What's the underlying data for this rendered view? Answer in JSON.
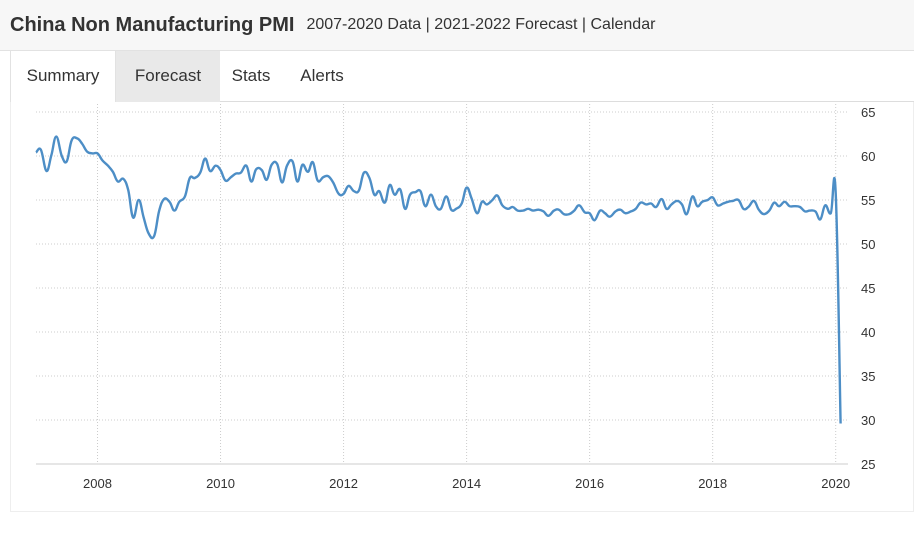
{
  "header": {
    "title": "China Non Manufacturing PMI",
    "subtitle": "2007-2020 Data | 2021-2022 Forecast | Calendar"
  },
  "tabs": [
    {
      "label": "Summary"
    },
    {
      "label": "Forecast"
    },
    {
      "label": "Stats"
    },
    {
      "label": "Alerts"
    }
  ],
  "colors": {
    "line": "#4d8ec6",
    "grid": "#cccccc",
    "active_tab": "#e9e9e9"
  },
  "chart_data": {
    "type": "line",
    "title": "",
    "xlabel": "",
    "ylabel": "",
    "xlim": [
      2007.0,
      2020.2
    ],
    "ylim": [
      25,
      65
    ],
    "x_ticks": [
      2008,
      2010,
      2012,
      2014,
      2016,
      2018,
      2020
    ],
    "y_ticks": [
      25,
      30,
      35,
      40,
      45,
      50,
      55,
      60,
      65
    ],
    "grid": true,
    "y_axis_position": "right",
    "series": [
      {
        "values": [
          [
            2007.0,
            60.4
          ],
          [
            2007.08,
            60.7
          ],
          [
            2007.17,
            58.3
          ],
          [
            2007.25,
            60.1
          ],
          [
            2007.33,
            62.2
          ],
          [
            2007.42,
            60.0
          ],
          [
            2007.5,
            59.4
          ],
          [
            2007.58,
            61.8
          ],
          [
            2007.67,
            62.0
          ],
          [
            2007.75,
            61.4
          ],
          [
            2007.83,
            60.5
          ],
          [
            2007.92,
            60.3
          ],
          [
            2008.0,
            60.3
          ],
          [
            2008.08,
            59.5
          ],
          [
            2008.17,
            58.9
          ],
          [
            2008.25,
            58.2
          ],
          [
            2008.33,
            57.1
          ],
          [
            2008.42,
            57.4
          ],
          [
            2008.5,
            56.1
          ],
          [
            2008.58,
            53.0
          ],
          [
            2008.67,
            55.0
          ],
          [
            2008.75,
            53.0
          ],
          [
            2008.83,
            51.2
          ],
          [
            2008.92,
            50.9
          ],
          [
            2009.0,
            53.7
          ],
          [
            2009.08,
            55.1
          ],
          [
            2009.17,
            54.8
          ],
          [
            2009.25,
            53.8
          ],
          [
            2009.33,
            54.8
          ],
          [
            2009.42,
            55.4
          ],
          [
            2009.5,
            57.5
          ],
          [
            2009.58,
            57.5
          ],
          [
            2009.67,
            58.1
          ],
          [
            2009.75,
            59.7
          ],
          [
            2009.83,
            58.3
          ],
          [
            2009.92,
            58.9
          ],
          [
            2010.0,
            58.4
          ],
          [
            2010.08,
            57.2
          ],
          [
            2010.17,
            57.6
          ],
          [
            2010.25,
            58.0
          ],
          [
            2010.33,
            58.1
          ],
          [
            2010.42,
            58.9
          ],
          [
            2010.5,
            57.1
          ],
          [
            2010.58,
            58.5
          ],
          [
            2010.67,
            58.4
          ],
          [
            2010.75,
            57.3
          ],
          [
            2010.83,
            59.0
          ],
          [
            2010.92,
            59.1
          ],
          [
            2011.0,
            57.0
          ],
          [
            2011.08,
            58.9
          ],
          [
            2011.17,
            59.4
          ],
          [
            2011.25,
            57.1
          ],
          [
            2011.33,
            59.0
          ],
          [
            2011.42,
            58.2
          ],
          [
            2011.5,
            59.3
          ],
          [
            2011.58,
            57.2
          ],
          [
            2011.67,
            57.6
          ],
          [
            2011.75,
            57.7
          ],
          [
            2011.83,
            57.0
          ],
          [
            2011.92,
            55.7
          ],
          [
            2012.0,
            55.7
          ],
          [
            2012.08,
            56.6
          ],
          [
            2012.17,
            56.0
          ],
          [
            2012.25,
            56.1
          ],
          [
            2012.33,
            58.1
          ],
          [
            2012.42,
            57.5
          ],
          [
            2012.5,
            55.6
          ],
          [
            2012.58,
            56.0
          ],
          [
            2012.67,
            54.7
          ],
          [
            2012.75,
            56.7
          ],
          [
            2012.83,
            55.6
          ],
          [
            2012.92,
            56.2
          ],
          [
            2013.0,
            54.0
          ],
          [
            2013.08,
            55.6
          ],
          [
            2013.17,
            55.9
          ],
          [
            2013.25,
            56.0
          ],
          [
            2013.33,
            54.3
          ],
          [
            2013.42,
            55.6
          ],
          [
            2013.5,
            54.3
          ],
          [
            2013.58,
            54.0
          ],
          [
            2013.67,
            55.4
          ],
          [
            2013.75,
            53.9
          ],
          [
            2013.83,
            54.0
          ],
          [
            2013.92,
            54.6
          ],
          [
            2014.0,
            56.4
          ],
          [
            2014.08,
            55.2
          ],
          [
            2014.17,
            53.5
          ],
          [
            2014.25,
            54.8
          ],
          [
            2014.33,
            54.5
          ],
          [
            2014.42,
            55.0
          ],
          [
            2014.5,
            55.5
          ],
          [
            2014.58,
            54.4
          ],
          [
            2014.67,
            54.0
          ],
          [
            2014.75,
            54.2
          ],
          [
            2014.83,
            53.8
          ],
          [
            2014.92,
            53.8
          ],
          [
            2015.0,
            54.0
          ],
          [
            2015.08,
            53.8
          ],
          [
            2015.17,
            53.9
          ],
          [
            2015.25,
            53.7
          ],
          [
            2015.33,
            53.2
          ],
          [
            2015.42,
            53.8
          ],
          [
            2015.5,
            53.9
          ],
          [
            2015.58,
            53.4
          ],
          [
            2015.67,
            53.4
          ],
          [
            2015.75,
            53.8
          ],
          [
            2015.83,
            54.4
          ],
          [
            2015.92,
            53.6
          ],
          [
            2016.0,
            53.5
          ],
          [
            2016.08,
            52.7
          ],
          [
            2016.17,
            53.8
          ],
          [
            2016.25,
            53.5
          ],
          [
            2016.33,
            53.1
          ],
          [
            2016.42,
            53.7
          ],
          [
            2016.5,
            53.9
          ],
          [
            2016.58,
            53.5
          ],
          [
            2016.67,
            53.7
          ],
          [
            2016.75,
            54.0
          ],
          [
            2016.83,
            54.7
          ],
          [
            2016.92,
            54.5
          ],
          [
            2017.0,
            54.6
          ],
          [
            2017.08,
            54.2
          ],
          [
            2017.17,
            55.1
          ],
          [
            2017.25,
            54.0
          ],
          [
            2017.33,
            54.5
          ],
          [
            2017.42,
            54.9
          ],
          [
            2017.5,
            54.5
          ],
          [
            2017.58,
            53.4
          ],
          [
            2017.67,
            55.4
          ],
          [
            2017.75,
            54.3
          ],
          [
            2017.83,
            54.8
          ],
          [
            2017.92,
            55.0
          ],
          [
            2018.0,
            55.3
          ],
          [
            2018.08,
            54.4
          ],
          [
            2018.17,
            54.6
          ],
          [
            2018.25,
            54.8
          ],
          [
            2018.33,
            54.9
          ],
          [
            2018.42,
            55.0
          ],
          [
            2018.5,
            54.0
          ],
          [
            2018.58,
            54.2
          ],
          [
            2018.67,
            54.9
          ],
          [
            2018.75,
            53.9
          ],
          [
            2018.83,
            53.4
          ],
          [
            2018.92,
            53.8
          ],
          [
            2019.0,
            54.7
          ],
          [
            2019.08,
            54.3
          ],
          [
            2019.17,
            54.8
          ],
          [
            2019.25,
            54.3
          ],
          [
            2019.33,
            54.3
          ],
          [
            2019.42,
            54.2
          ],
          [
            2019.5,
            53.7
          ],
          [
            2019.58,
            53.8
          ],
          [
            2019.67,
            53.7
          ],
          [
            2019.75,
            52.8
          ],
          [
            2019.83,
            54.4
          ],
          [
            2019.92,
            53.5
          ],
          [
            2020.0,
            55.8
          ],
          [
            2020.08,
            29.6
          ]
        ]
      }
    ]
  }
}
